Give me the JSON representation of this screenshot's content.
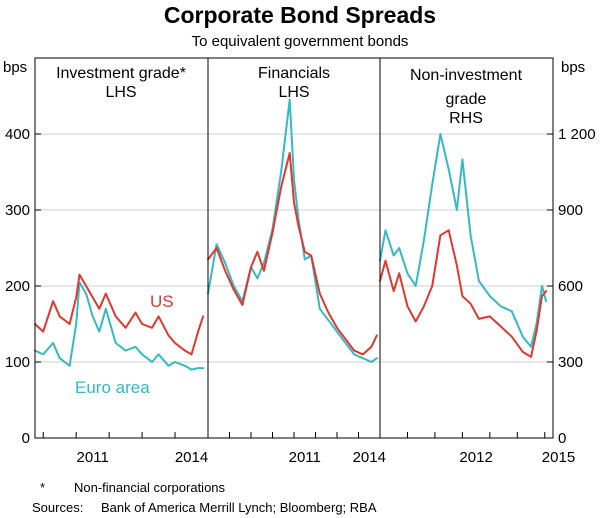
{
  "title": "Corporate Bond Spreads",
  "subtitle": "To equivalent government bonds",
  "axis": {
    "left_unit": "bps",
    "right_unit": "bps",
    "left_ticks": [
      {
        "value": 0,
        "label": "0"
      },
      {
        "value": 100,
        "label": "100"
      },
      {
        "value": 200,
        "label": "200"
      },
      {
        "value": 300,
        "label": "300"
      },
      {
        "value": 400,
        "label": "400"
      }
    ],
    "right_ticks": [
      {
        "value": 0,
        "label": "0"
      },
      {
        "value": 300,
        "label": "300"
      },
      {
        "value": 600,
        "label": "600"
      },
      {
        "value": 900,
        "label": "900"
      },
      {
        "value": 1200,
        "label": "1 200"
      }
    ]
  },
  "colors": {
    "us": "#e2372d",
    "euro": "#35b9c7"
  },
  "series_labels": {
    "us": "US",
    "euro": "Euro area"
  },
  "notes": {
    "footnote_mark": "*",
    "footnote_text": "Non-financial corporations",
    "sources_label": "Sources:",
    "sources_text": "Bank of America Merrill Lynch; Bloomberg; RBA"
  },
  "chart_data": [
    {
      "type": "line",
      "panel": "Investment grade",
      "label_lines": [
        "Investment grade*",
        "LHS"
      ],
      "axis_side": "left",
      "ylim": [
        0,
        500
      ],
      "xlim": [
        2009.75,
        2015.0
      ],
      "x_ticks": [
        2011,
        2014
      ],
      "x_tick_labels": [
        "2011",
        "2014"
      ],
      "series": [
        {
          "name": "US",
          "color_key": "us",
          "x": [
            2009.75,
            2010.0,
            2010.3,
            2010.5,
            2010.8,
            2011.0,
            2011.1,
            2011.3,
            2011.5,
            2011.7,
            2011.9,
            2012.2,
            2012.5,
            2012.8,
            2013.0,
            2013.3,
            2013.5,
            2013.8,
            2014.0,
            2014.3,
            2014.5,
            2014.7,
            2014.85
          ],
          "values": [
            150,
            140,
            180,
            160,
            150,
            185,
            215,
            200,
            185,
            170,
            190,
            160,
            145,
            165,
            150,
            145,
            160,
            135,
            125,
            115,
            110,
            140,
            160
          ]
        },
        {
          "name": "Euro area",
          "color_key": "euro",
          "x": [
            2009.75,
            2010.0,
            2010.3,
            2010.5,
            2010.8,
            2011.0,
            2011.1,
            2011.3,
            2011.5,
            2011.7,
            2011.9,
            2012.2,
            2012.5,
            2012.8,
            2013.0,
            2013.3,
            2013.5,
            2013.8,
            2014.0,
            2014.3,
            2014.5,
            2014.7,
            2014.85
          ],
          "values": [
            115,
            110,
            125,
            105,
            95,
            150,
            205,
            190,
            160,
            140,
            170,
            125,
            115,
            120,
            110,
            100,
            110,
            95,
            100,
            95,
            90,
            92,
            92
          ]
        }
      ]
    },
    {
      "type": "line",
      "panel": "Financials",
      "label_lines": [
        "Financials",
        "LHS"
      ],
      "axis_side": "left",
      "ylim": [
        0,
        500
      ],
      "xlim": [
        2007.0,
        2015.0
      ],
      "x_ticks": [
        2011,
        2014
      ],
      "x_tick_labels": [
        "2011",
        "2014"
      ],
      "series": [
        {
          "name": "US",
          "color_key": "us",
          "x": [
            2007.0,
            2007.4,
            2007.8,
            2008.2,
            2008.6,
            2009.0,
            2009.3,
            2009.6,
            2010.0,
            2010.4,
            2010.8,
            2011.0,
            2011.2,
            2011.5,
            2011.8,
            2012.2,
            2012.6,
            2013.0,
            2013.4,
            2013.8,
            2014.2,
            2014.6,
            2014.85
          ],
          "values": [
            235,
            250,
            220,
            195,
            175,
            225,
            245,
            220,
            270,
            330,
            375,
            310,
            280,
            245,
            240,
            190,
            165,
            145,
            130,
            115,
            110,
            120,
            135
          ]
        },
        {
          "name": "Euro area",
          "color_key": "euro",
          "x": [
            2007.0,
            2007.4,
            2007.8,
            2008.2,
            2008.6,
            2009.0,
            2009.3,
            2009.6,
            2010.0,
            2010.4,
            2010.8,
            2011.0,
            2011.2,
            2011.5,
            2011.8,
            2012.2,
            2012.6,
            2013.0,
            2013.4,
            2013.8,
            2014.2,
            2014.6,
            2014.85
          ],
          "values": [
            190,
            255,
            230,
            200,
            180,
            225,
            210,
            230,
            275,
            350,
            445,
            340,
            290,
            235,
            240,
            170,
            155,
            140,
            125,
            110,
            105,
            100,
            105
          ]
        }
      ]
    },
    {
      "type": "line",
      "panel": "Non-investment grade",
      "label_lines": [
        "Non-investment",
        "grade",
        "RHS"
      ],
      "axis_side": "right",
      "ylim": [
        0,
        1500
      ],
      "xlim": [
        2009.0,
        2015.3
      ],
      "x_ticks": [
        2012,
        2015
      ],
      "x_tick_labels": [
        "2012",
        "2015"
      ],
      "series": [
        {
          "name": "US",
          "color_key": "us",
          "x": [
            2009.0,
            2009.2,
            2009.5,
            2009.7,
            2010.0,
            2010.3,
            2010.6,
            2010.9,
            2011.2,
            2011.5,
            2011.8,
            2012.0,
            2012.3,
            2012.6,
            2013.0,
            2013.4,
            2013.8,
            2014.2,
            2014.5,
            2014.7,
            2014.9,
            2015.05
          ],
          "values": [
            620,
            700,
            580,
            650,
            520,
            460,
            520,
            600,
            800,
            820,
            680,
            560,
            530,
            470,
            480,
            440,
            400,
            340,
            320,
            420,
            560,
            580
          ]
        },
        {
          "name": "Euro area",
          "color_key": "euro",
          "x": [
            2009.0,
            2009.2,
            2009.5,
            2009.7,
            2010.0,
            2010.3,
            2010.6,
            2010.9,
            2011.2,
            2011.5,
            2011.8,
            2012.0,
            2012.3,
            2012.6,
            2013.0,
            2013.4,
            2013.8,
            2014.2,
            2014.5,
            2014.7,
            2014.9,
            2015.05
          ],
          "values": [
            700,
            820,
            720,
            750,
            650,
            600,
            780,
            1000,
            1200,
            1060,
            900,
            1100,
            800,
            620,
            560,
            520,
            500,
            400,
            360,
            450,
            600,
            540
          ]
        }
      ]
    }
  ]
}
